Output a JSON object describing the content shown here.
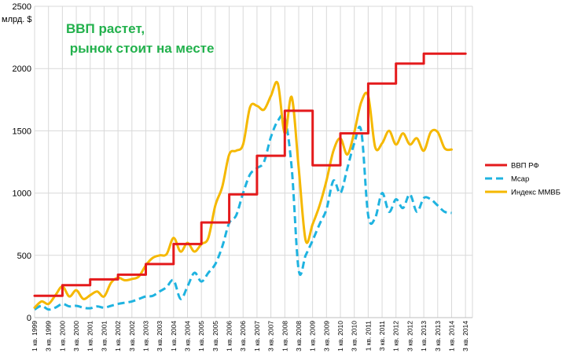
{
  "chart_data": {
    "type": "line",
    "title_lines": [
      "ВВП растет,",
      " рынок стоит на месте"
    ],
    "title_color": "#22b14c",
    "ylabel": "млрд. $",
    "ylim": [
      0,
      2500
    ],
    "yticks": [
      0,
      500,
      1000,
      1500,
      2000,
      2500
    ],
    "x_labels": [
      "1 кв. 1999",
      "3 кв. 1999",
      "1 кв. 2000",
      "3 кв. 2000",
      "1 кв. 2001",
      "3 кв. 2001",
      "1 кв. 2002",
      "3 кв. 2002",
      "1 кв. 2003",
      "3 кв. 2003",
      "1 кв. 2004",
      "3 кв. 2004",
      "1 кв. 2005",
      "3 кв. 2005",
      "1 кв. 2006",
      "3 кв. 2006",
      "1 кв. 2007",
      "3 кв. 2007",
      "1 кв. 2008",
      "3 кв. 2008",
      "1 кв. 2009",
      "3 кв. 2009",
      "1 кв. 2010",
      "3 кв. 2010",
      "1 кв. 2011",
      "3 кв. 2011",
      "1 кв. 2012",
      "3 кв. 2012",
      "1 кв. 2013",
      "3 кв. 2013",
      "1 кв. 2014",
      "3 кв. 2014"
    ],
    "x_range": [
      1999.0,
      2014.75
    ],
    "grid": true,
    "legend_position": "right",
    "series": [
      {
        "name": "ВВП РФ",
        "color": "#e41a1c",
        "style": "solid",
        "step": true,
        "points": [
          [
            1999.0,
            175
          ],
          [
            2000.0,
            260
          ],
          [
            2001.0,
            307
          ],
          [
            2002.0,
            345
          ],
          [
            2003.0,
            430
          ],
          [
            2004.0,
            591
          ],
          [
            2005.0,
            764
          ],
          [
            2006.0,
            990
          ],
          [
            2007.0,
            1300
          ],
          [
            2008.0,
            1661
          ],
          [
            2009.0,
            1223
          ],
          [
            2010.0,
            1480
          ],
          [
            2011.0,
            1880
          ],
          [
            2012.0,
            2040
          ],
          [
            2013.0,
            2120
          ],
          [
            2014.5,
            2120
          ]
        ]
      },
      {
        "name": "Mcap",
        "color": "#1fb3e0",
        "style": "dashed",
        "step": false,
        "points": [
          [
            1999.0,
            65
          ],
          [
            1999.25,
            95
          ],
          [
            1999.5,
            65
          ],
          [
            1999.75,
            80
          ],
          [
            2000.0,
            110
          ],
          [
            2000.25,
            90
          ],
          [
            2000.5,
            95
          ],
          [
            2000.75,
            80
          ],
          [
            2001.0,
            75
          ],
          [
            2001.25,
            90
          ],
          [
            2001.5,
            80
          ],
          [
            2001.75,
            95
          ],
          [
            2002.0,
            110
          ],
          [
            2002.25,
            120
          ],
          [
            2002.5,
            130
          ],
          [
            2002.75,
            150
          ],
          [
            2003.0,
            170
          ],
          [
            2003.25,
            175
          ],
          [
            2003.5,
            210
          ],
          [
            2003.75,
            245
          ],
          [
            2004.0,
            300
          ],
          [
            2004.25,
            150
          ],
          [
            2004.5,
            250
          ],
          [
            2004.75,
            360
          ],
          [
            2005.0,
            290
          ],
          [
            2005.25,
            360
          ],
          [
            2005.5,
            430
          ],
          [
            2005.75,
            570
          ],
          [
            2006.0,
            760
          ],
          [
            2006.25,
            820
          ],
          [
            2006.5,
            1000
          ],
          [
            2006.75,
            1150
          ],
          [
            2007.0,
            1200
          ],
          [
            2007.25,
            1250
          ],
          [
            2007.5,
            1450
          ],
          [
            2007.75,
            1580
          ],
          [
            2008.0,
            1600
          ],
          [
            2008.25,
            1200
          ],
          [
            2008.5,
            380
          ],
          [
            2008.75,
            500
          ],
          [
            2009.0,
            620
          ],
          [
            2009.25,
            750
          ],
          [
            2009.5,
            870
          ],
          [
            2009.75,
            1100
          ],
          [
            2010.0,
            1000
          ],
          [
            2010.25,
            1200
          ],
          [
            2010.5,
            1400
          ],
          [
            2010.75,
            1500
          ],
          [
            2011.0,
            820
          ],
          [
            2011.25,
            800
          ],
          [
            2011.5,
            1000
          ],
          [
            2011.75,
            850
          ],
          [
            2012.0,
            950
          ],
          [
            2012.25,
            880
          ],
          [
            2012.5,
            990
          ],
          [
            2012.75,
            850
          ],
          [
            2013.0,
            960
          ],
          [
            2013.25,
            950
          ],
          [
            2013.5,
            900
          ],
          [
            2013.75,
            850
          ],
          [
            2014.0,
            840
          ]
        ]
      },
      {
        "name": "Индекс ММВБ",
        "color": "#f5b800",
        "style": "solid",
        "step": false,
        "points": [
          [
            1999.0,
            80
          ],
          [
            1999.25,
            130
          ],
          [
            1999.5,
            110
          ],
          [
            1999.75,
            180
          ],
          [
            2000.0,
            250
          ],
          [
            2000.25,
            170
          ],
          [
            2000.5,
            220
          ],
          [
            2000.75,
            150
          ],
          [
            2001.0,
            180
          ],
          [
            2001.25,
            210
          ],
          [
            2001.5,
            170
          ],
          [
            2001.75,
            280
          ],
          [
            2002.0,
            320
          ],
          [
            2002.25,
            300
          ],
          [
            2002.5,
            310
          ],
          [
            2002.75,
            330
          ],
          [
            2003.0,
            420
          ],
          [
            2003.25,
            480
          ],
          [
            2003.5,
            500
          ],
          [
            2003.75,
            510
          ],
          [
            2004.0,
            640
          ],
          [
            2004.25,
            530
          ],
          [
            2004.5,
            600
          ],
          [
            2004.75,
            530
          ],
          [
            2005.0,
            590
          ],
          [
            2005.25,
            640
          ],
          [
            2005.5,
            900
          ],
          [
            2005.75,
            1050
          ],
          [
            2006.0,
            1310
          ],
          [
            2006.25,
            1340
          ],
          [
            2006.5,
            1390
          ],
          [
            2006.75,
            1690
          ],
          [
            2007.0,
            1700
          ],
          [
            2007.25,
            1670
          ],
          [
            2007.5,
            1780
          ],
          [
            2007.75,
            1880
          ],
          [
            2008.0,
            1480
          ],
          [
            2008.25,
            1770
          ],
          [
            2008.5,
            1200
          ],
          [
            2008.75,
            620
          ],
          [
            2009.0,
            750
          ],
          [
            2009.25,
            900
          ],
          [
            2009.5,
            1100
          ],
          [
            2009.75,
            1340
          ],
          [
            2010.0,
            1440
          ],
          [
            2010.25,
            1310
          ],
          [
            2010.5,
            1490
          ],
          [
            2010.75,
            1730
          ],
          [
            2011.0,
            1780
          ],
          [
            2011.25,
            1370
          ],
          [
            2011.5,
            1400
          ],
          [
            2011.75,
            1500
          ],
          [
            2012.0,
            1390
          ],
          [
            2012.25,
            1480
          ],
          [
            2012.5,
            1390
          ],
          [
            2012.75,
            1440
          ],
          [
            2013.0,
            1340
          ],
          [
            2013.25,
            1490
          ],
          [
            2013.5,
            1490
          ],
          [
            2013.75,
            1360
          ],
          [
            2014.0,
            1350
          ]
        ]
      }
    ]
  }
}
